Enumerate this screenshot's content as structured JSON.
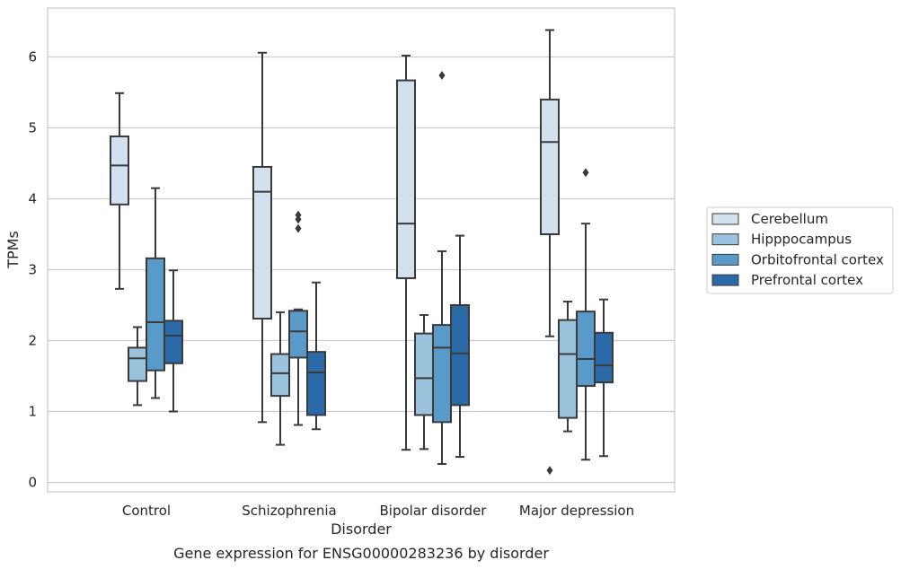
{
  "chart_data": {
    "type": "boxplot",
    "title": "",
    "caption": "Gene expression for ENSG00000283236 by disorder",
    "xlabel": "Disorder",
    "ylabel": "TPMs",
    "ylim": [
      -0.1,
      6.7
    ],
    "yticks": [
      0,
      1,
      2,
      3,
      4,
      5,
      6
    ],
    "grid": "horizontal",
    "legend_position": "right",
    "categories": [
      "Control",
      "Schizophrenia",
      "Bipolar disorder",
      "Major depression"
    ],
    "series": [
      {
        "name": "Cerebellum",
        "color": "#d2e1f0",
        "boxes": [
          {
            "whislo": 2.73,
            "q1": 3.92,
            "med": 4.47,
            "q3": 4.88,
            "whishi": 5.49,
            "fliers": []
          },
          {
            "whislo": 0.85,
            "q1": 2.31,
            "med": 4.1,
            "q3": 4.45,
            "whishi": 6.06,
            "fliers": []
          },
          {
            "whislo": 0.46,
            "q1": 2.88,
            "med": 3.65,
            "q3": 5.67,
            "whishi": 6.02,
            "fliers": []
          },
          {
            "whislo": 2.06,
            "q1": 3.5,
            "med": 4.8,
            "q3": 5.4,
            "whishi": 6.38,
            "fliers": [
              0.17
            ]
          }
        ]
      },
      {
        "name": "Hipppocampus",
        "color": "#9ac3de",
        "boxes": [
          {
            "whislo": 1.09,
            "q1": 1.43,
            "med": 1.75,
            "q3": 1.9,
            "whishi": 2.19,
            "fliers": []
          },
          {
            "whislo": 0.53,
            "q1": 1.22,
            "med": 1.54,
            "q3": 1.81,
            "whishi": 2.4,
            "fliers": []
          },
          {
            "whislo": 0.47,
            "q1": 0.95,
            "med": 1.47,
            "q3": 2.1,
            "whishi": 2.36,
            "fliers": []
          },
          {
            "whislo": 0.72,
            "q1": 0.91,
            "med": 1.81,
            "q3": 2.29,
            "whishi": 2.55,
            "fliers": []
          }
        ]
      },
      {
        "name": "Orbitofrontal cortex",
        "color": "#5a9ac9",
        "boxes": [
          {
            "whislo": 1.19,
            "q1": 1.58,
            "med": 2.26,
            "q3": 3.16,
            "whishi": 4.15,
            "fliers": []
          },
          {
            "whislo": 0.81,
            "q1": 1.76,
            "med": 2.13,
            "q3": 2.42,
            "whishi": 2.44,
            "fliers": [
              3.58,
              3.71,
              3.77
            ]
          },
          {
            "whislo": 0.26,
            "q1": 0.85,
            "med": 1.9,
            "q3": 2.22,
            "whishi": 3.26,
            "fliers": [
              5.74
            ]
          },
          {
            "whislo": 0.32,
            "q1": 1.36,
            "med": 1.74,
            "q3": 2.41,
            "whishi": 3.65,
            "fliers": [
              4.37
            ]
          }
        ]
      },
      {
        "name": "Prefrontal cortex",
        "color": "#2a6aa8",
        "boxes": [
          {
            "whislo": 1.0,
            "q1": 1.68,
            "med": 2.07,
            "q3": 2.28,
            "whishi": 2.99,
            "fliers": []
          },
          {
            "whislo": 0.75,
            "q1": 0.95,
            "med": 1.55,
            "q3": 1.84,
            "whishi": 2.82,
            "fliers": []
          },
          {
            "whislo": 0.36,
            "q1": 1.09,
            "med": 1.82,
            "q3": 2.5,
            "whishi": 3.48,
            "fliers": []
          },
          {
            "whislo": 0.37,
            "q1": 1.41,
            "med": 1.65,
            "q3": 2.11,
            "whishi": 2.58,
            "fliers": []
          }
        ]
      }
    ]
  }
}
